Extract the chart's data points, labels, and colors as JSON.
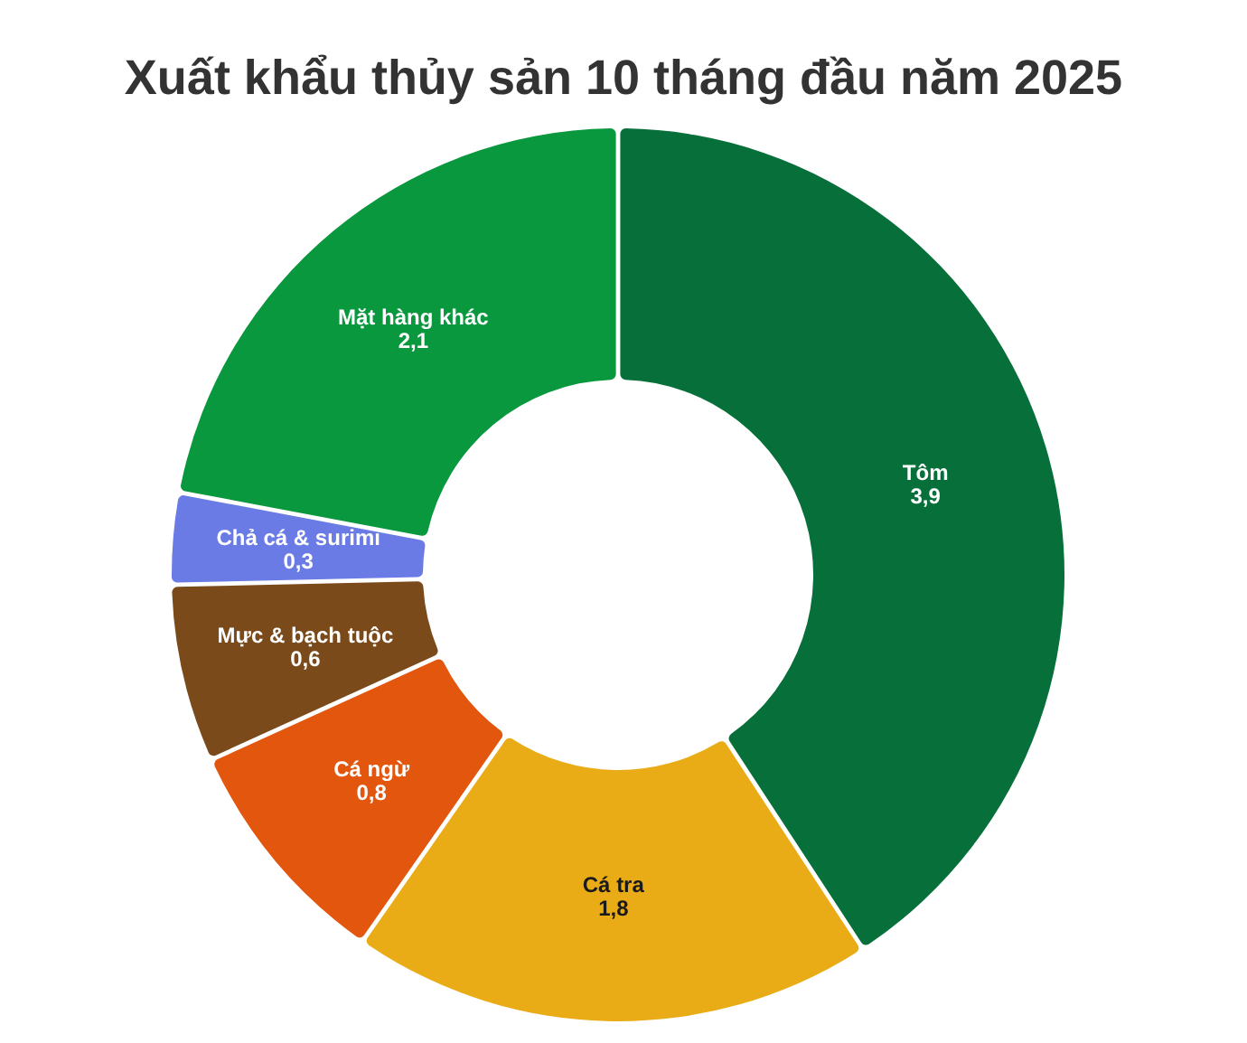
{
  "chart_data": {
    "type": "donut",
    "title": "Xuất khẩu thủy sản 10 tháng đầu năm 2025",
    "categories": [
      "Tôm",
      "Cá tra",
      "Cá ngừ",
      "Mực & bạch tuộc",
      "Chả cá & surimi",
      "Mặt hàng khác"
    ],
    "values": [
      3.9,
      1.8,
      0.8,
      0.6,
      0.3,
      2.1
    ],
    "colors": [
      "#07703a",
      "#e9ac17",
      "#e2560e",
      "#7a4a1a",
      "#6b7be6",
      "#0a983f"
    ],
    "value_labels": [
      "3,9",
      "1,8",
      "0,8",
      "0,6",
      "0,3",
      "2,1"
    ]
  }
}
